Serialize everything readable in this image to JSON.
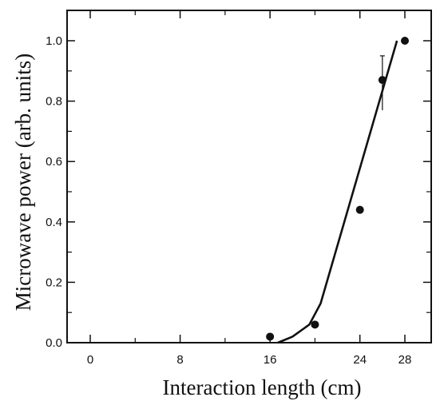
{
  "chart_data": {
    "type": "scatter",
    "title": "",
    "xlabel": "Interaction length (cm)",
    "ylabel": "Microwave power (arb. units)",
    "xlim": [
      0,
      30
    ],
    "ylim": [
      0,
      1.05
    ],
    "x_ticks": [
      0,
      8,
      16,
      24,
      28
    ],
    "x_tick_labels": [
      "0",
      "8",
      "16",
      "24",
      "28"
    ],
    "x_minor_ticks": [
      4,
      12,
      20
    ],
    "y_ticks": [
      0,
      0.2,
      0.4,
      0.6,
      0.8,
      1.0
    ],
    "y_tick_labels": [
      "0.0",
      "0.2",
      "0.4",
      "0.6",
      "0.8",
      "1.0"
    ],
    "y_minor_ticks": [
      0.1,
      0.3,
      0.5,
      0.7,
      0.9
    ],
    "grid": false,
    "series": [
      {
        "type": "scatter",
        "x": [
          16,
          20,
          24,
          26,
          28
        ],
        "y": [
          0.02,
          0.06,
          0.44,
          0.87,
          1.0
        ],
        "error_bars": [
          {
            "x": 26,
            "lower": 0.77,
            "upper": 0.95
          }
        ]
      },
      {
        "type": "line",
        "x": [
          16.7,
          18,
          19.5,
          20.5,
          27.3
        ],
        "y": [
          0.0,
          0.02,
          0.06,
          0.13,
          1.0
        ]
      }
    ]
  }
}
